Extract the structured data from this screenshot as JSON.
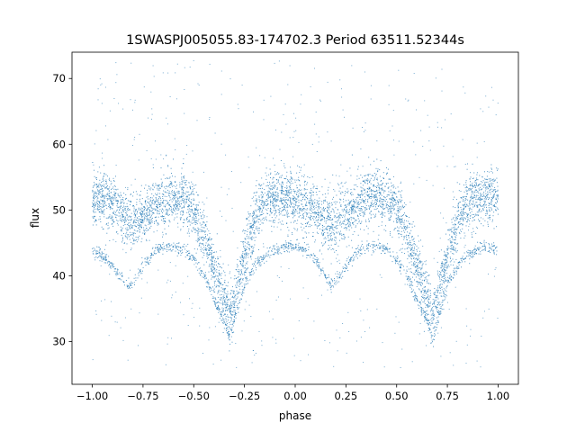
{
  "chart_data": {
    "type": "scatter",
    "title": "1SWASPJ005055.83-174702.3 Period 63511.52344s",
    "xlabel": "phase",
    "ylabel": "flux",
    "xlim": [
      -1.1,
      1.1
    ],
    "ylim": [
      23.5,
      74
    ],
    "xticks": [
      -1.0,
      -0.75,
      -0.5,
      -0.25,
      0.0,
      0.25,
      0.5,
      0.75,
      1.0
    ],
    "xtick_labels": [
      "−1.00",
      "−0.75",
      "−0.50",
      "−0.25",
      "0.00",
      "0.25",
      "0.50",
      "0.75",
      "1.00"
    ],
    "yticks": [
      30,
      40,
      50,
      60,
      70
    ],
    "ytick_labels": [
      "30",
      "40",
      "50",
      "60",
      "70"
    ],
    "grid": false,
    "marker_color": "#1f77b4",
    "series": [
      {
        "description": "main folded light-curve band (primary eclipse near phase -0.32 / 0.68, secondary near 0.18 / -0.82)",
        "phase": [
          -1.0,
          -0.95,
          -0.9,
          -0.85,
          -0.8,
          -0.75,
          -0.7,
          -0.65,
          -0.6,
          -0.55,
          -0.5,
          -0.45,
          -0.4,
          -0.35,
          -0.32,
          -0.3,
          -0.25,
          -0.2,
          -0.15,
          -0.1,
          -0.05,
          0.0,
          0.05,
          0.1,
          0.15,
          0.18,
          0.2,
          0.25,
          0.3,
          0.35,
          0.4,
          0.45,
          0.5,
          0.55,
          0.6,
          0.65,
          0.68,
          0.7,
          0.75,
          0.8,
          0.85,
          0.9,
          0.95,
          1.0
        ],
        "flux": [
          51.5,
          52.0,
          51.0,
          49.0,
          48.0,
          49.0,
          50.5,
          51.5,
          52.0,
          51.5,
          49.5,
          46.0,
          41.0,
          36.0,
          34.0,
          36.0,
          43.0,
          48.5,
          51.0,
          52.0,
          52.0,
          51.5,
          51.0,
          49.5,
          48.0,
          47.8,
          48.0,
          49.5,
          51.0,
          52.0,
          52.3,
          51.8,
          50.0,
          46.5,
          41.5,
          36.5,
          34.0,
          36.0,
          43.0,
          48.5,
          51.0,
          52.0,
          52.3,
          51.8
        ]
      },
      {
        "description": "lower secondary track",
        "phase": [
          -1.0,
          -0.95,
          -0.9,
          -0.85,
          -0.82,
          -0.8,
          -0.75,
          -0.7,
          -0.65,
          -0.6,
          -0.55,
          -0.5,
          -0.45,
          -0.4,
          -0.35,
          -0.32,
          -0.3,
          -0.25,
          -0.2,
          -0.15,
          -0.1,
          -0.05,
          0.0,
          0.05,
          0.1,
          0.15,
          0.18,
          0.2,
          0.25,
          0.3,
          0.35,
          0.4,
          0.45,
          0.5,
          0.55,
          0.6,
          0.65,
          0.68,
          0.7,
          0.75,
          0.8,
          0.85,
          0.9,
          0.95,
          1.0
        ],
        "flux": [
          43.8,
          43.0,
          41.5,
          39.5,
          38.5,
          39.0,
          41.5,
          43.5,
          44.3,
          44.5,
          44.0,
          42.5,
          40.0,
          36.5,
          33.0,
          30.5,
          33.0,
          38.5,
          41.5,
          43.0,
          44.0,
          44.3,
          44.5,
          44.0,
          42.5,
          40.0,
          38.5,
          39.0,
          41.5,
          43.5,
          44.3,
          44.5,
          44.0,
          42.5,
          40.0,
          36.5,
          33.0,
          30.5,
          33.0,
          38.5,
          41.5,
          43.0,
          44.0,
          44.3,
          44.0
        ]
      }
    ]
  }
}
